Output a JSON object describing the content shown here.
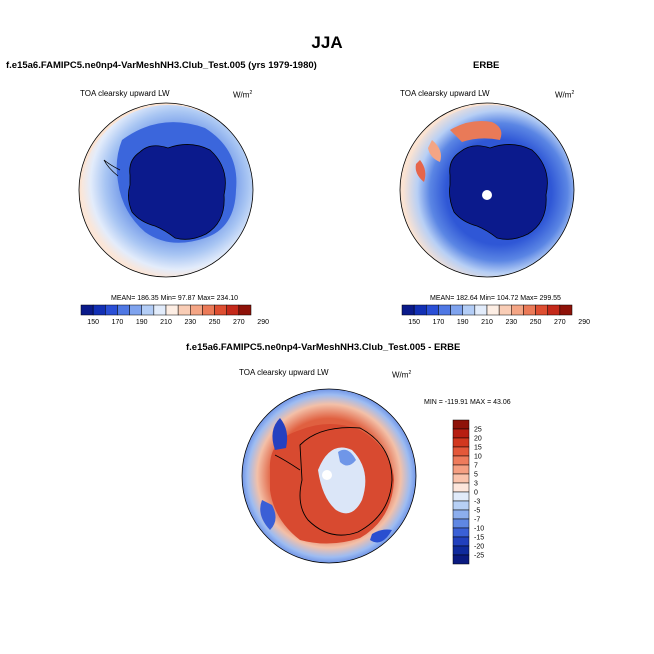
{
  "figure": {
    "season": "JJA",
    "colors": {
      "ice": "#0b1a8c",
      "ocean_light": "#fbe3d2",
      "ocean_blue_light": "#c6dcf4",
      "ocean_blue": "#4f7fe0",
      "ocean_mid": "#2f57d6",
      "red": "#d2482b",
      "red_dark": "#a11a0e"
    }
  },
  "panels": {
    "model": {
      "title": "f.e15a6.FAMIPC5.ne0np4-VarMeshNH3.Club_Test.005 (yrs 1979-1980)",
      "variable": "TOA clearsky upward LW",
      "units": "W/m",
      "units_exp": "2",
      "stats": "MEAN= 186.35    Min=  97.87  Max= 234.10"
    },
    "obs": {
      "title": "ERBE",
      "variable": "TOA clearsky upward LW",
      "units": "W/m",
      "units_exp": "2",
      "stats": "MEAN= 182.64    Min= 104.72  Max= 299.55"
    },
    "diff": {
      "title": "f.e15a6.FAMIPC5.ne0np4-VarMeshNH3.Club_Test.005 - ERBE",
      "variable": "TOA clearsky upward LW",
      "units": "W/m",
      "units_exp": "2",
      "stats": "MIN = -119.91  MAX =  43.06"
    }
  },
  "colorbars": {
    "absolute": {
      "labels": [
        "150",
        "170",
        "190",
        "210",
        "230",
        "250",
        "270",
        "290"
      ],
      "colors": [
        "#0a1a8a",
        "#1230b5",
        "#2a4fd6",
        "#4f78e4",
        "#7fa3ee",
        "#b3cdf6",
        "#e2ecfb",
        "#fdeee4",
        "#f9cdb6",
        "#f4a585",
        "#eb7a58",
        "#de4e31",
        "#c4291a",
        "#8e1209"
      ]
    },
    "difference": {
      "labels": [
        "25",
        "20",
        "15",
        "10",
        "7",
        "5",
        "3",
        "0",
        "-3",
        "-5",
        "-7",
        "-10",
        "-15",
        "-20",
        "-25"
      ],
      "colors": [
        "#8e1209",
        "#b71e12",
        "#d2381f",
        "#e4583a",
        "#ee7b5c",
        "#f59f82",
        "#fac3ac",
        "#fde6dc",
        "#e1ebfa",
        "#b7d0f5",
        "#8caeee",
        "#5f87e3",
        "#3a60d6",
        "#2140bd",
        "#0f2a9c",
        "#0a1a80"
      ]
    }
  }
}
